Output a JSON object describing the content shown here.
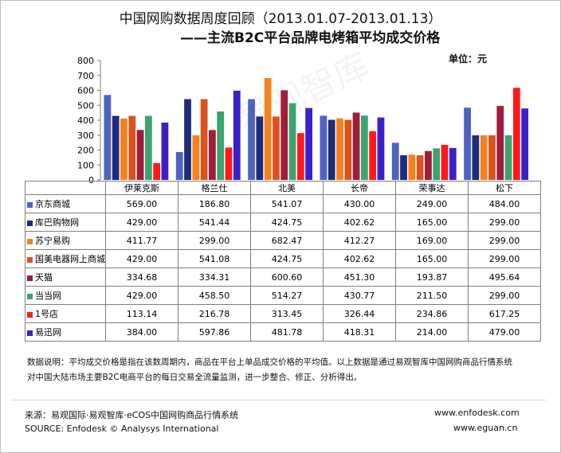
{
  "chart_data": {
    "type": "bar",
    "title": "中国网购数据周度回顾（2013.01.07-2013.01.13）",
    "subtitle": "——主流B2C平台品牌电烤箱平均成交价格",
    "unit_label": "单位：元",
    "ylim": [
      0,
      800
    ],
    "yticks": [
      "0",
      "100",
      "200",
      "300",
      "400",
      "500",
      "600",
      "700",
      "800"
    ],
    "categories": [
      "伊莱克斯",
      "格兰仕",
      "北美",
      "长帝",
      "荣事达",
      "松下"
    ],
    "grid": false,
    "legend": "table-left",
    "series": [
      {
        "name": "京东商城",
        "color": "#4f62c2",
        "values": [
          569.0,
          186.8,
          541.07,
          430.0,
          249.0,
          484.0
        ],
        "labels": [
          "569.00",
          "186.80",
          "541.07",
          "430.00",
          "249.00",
          "484.00"
        ]
      },
      {
        "name": "库巴购物网",
        "color": "#1e2c7a",
        "values": [
          429.0,
          541.44,
          424.75,
          402.62,
          165.0,
          299.0
        ],
        "labels": [
          "429.00",
          "541.44",
          "424.75",
          "402.62",
          "165.00",
          "299.00"
        ]
      },
      {
        "name": "苏宁易购",
        "color": "#f58220",
        "values": [
          411.77,
          299.0,
          682.47,
          412.27,
          169.0,
          299.0
        ],
        "labels": [
          "411.77",
          "299.00",
          "682.47",
          "412.27",
          "169.00",
          "299.00"
        ]
      },
      {
        "name": "国美电器网上商城",
        "color": "#d9531e",
        "values": [
          429.0,
          541.08,
          424.75,
          402.62,
          165.0,
          299.0
        ],
        "labels": [
          "429.00",
          "541.08",
          "424.75",
          "402.62",
          "165.00",
          "299.00"
        ]
      },
      {
        "name": "天猫",
        "color": "#a01c3c",
        "values": [
          334.68,
          334.31,
          600.6,
          451.3,
          193.87,
          495.64
        ],
        "labels": [
          "334.68",
          "334.31",
          "600.60",
          "451.30",
          "193.87",
          "495.64"
        ]
      },
      {
        "name": "当当网",
        "color": "#3aa36f",
        "values": [
          429.0,
          458.5,
          514.27,
          430.77,
          211.5,
          299.0
        ],
        "labels": [
          "429.00",
          "458.50",
          "514.27",
          "430.77",
          "211.50",
          "299.00"
        ]
      },
      {
        "name": "1号店",
        "color": "#ff1a1a",
        "values": [
          113.14,
          216.78,
          313.45,
          326.44,
          234.86,
          617.25
        ],
        "labels": [
          "113.14",
          "216.78",
          "313.45",
          "326.44",
          "234.86",
          "617.25"
        ]
      },
      {
        "name": "易迅网",
        "color": "#3b20c8",
        "values": [
          384.0,
          597.86,
          481.78,
          418.31,
          214.0,
          479.0
        ],
        "labels": [
          "384.00",
          "597.86",
          "481.78",
          "418.31",
          "214.00",
          "479.00"
        ]
      }
    ]
  },
  "note": {
    "line1": "数据说明：平均成交价格是指在该数周期内，商品在平台上单品成交价格的平均值。以上数据是通过易观智库中国网购商品行情系统",
    "line2": "对中国大陆市场主要B2C电商平台的每日交易全流量监测，进一步整合、修正、分析得出。"
  },
  "source": {
    "cn": "来源：易观国际·易观智库·eCOS中国网购商品行情系统",
    "en": "SOURCE: Enfodesk © Analysys International",
    "url1": "www.enfodesk.com",
    "url2": "www.eguan.cn"
  },
  "watermark": "易观智库"
}
